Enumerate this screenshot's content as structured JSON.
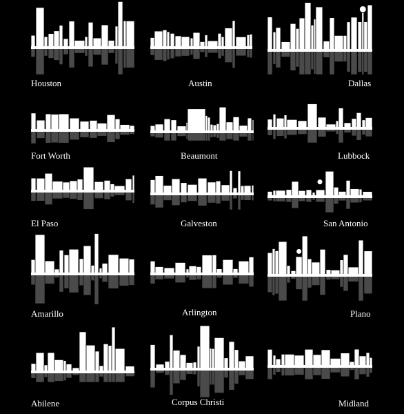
{
  "cities": [
    {
      "name": "Houston"
    },
    {
      "name": "Austin"
    },
    {
      "name": "Dallas"
    },
    {
      "name": "Fort Worth"
    },
    {
      "name": "Beaumont"
    },
    {
      "name": "Lubbock"
    },
    {
      "name": "El Paso"
    },
    {
      "name": "Galveston"
    },
    {
      "name": "San Antonio"
    },
    {
      "name": "Amarillo"
    },
    {
      "name": "Arlington"
    },
    {
      "name": "Plano"
    },
    {
      "name": "Abilene"
    },
    {
      "name": "Corpus Christi"
    },
    {
      "name": "Midland"
    }
  ],
  "colors": {
    "background": "#000000",
    "skyline": "#ffffff",
    "reflection": "#555555"
  }
}
